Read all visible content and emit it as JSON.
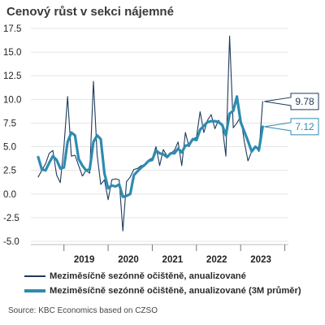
{
  "title": "Cenový růst v sekci nájemné",
  "source": "Source: KBC Economics based on CZSO",
  "colors": {
    "monthly": "#1f3a5c",
    "avg3m": "#2e8bb0",
    "grid": "#e6e6e6",
    "axis": "#444444"
  },
  "chart_data": {
    "type": "line",
    "title": "Cenový růst v sekci nájemné",
    "xlabel": "",
    "ylabel": "",
    "ylim": [
      -5.0,
      17.5
    ],
    "y_ticks": [
      "17.5",
      "15.0",
      "12.5",
      "10.0",
      "7.5",
      "5.0",
      "2.5",
      "0.0",
      "-2.5",
      "-5.0"
    ],
    "x_tick_labels": [
      "2019",
      "2020",
      "2021",
      "2022",
      "2023"
    ],
    "x_start": "2018-06",
    "x_end": "2023-12",
    "legend_position": "bottom",
    "series": [
      {
        "name": "Meziměsíčně sezónně očištěně, anualizované",
        "values": [
          1.8,
          2.5,
          3.2,
          4.3,
          4.6,
          2.0,
          1.2,
          5.0,
          10.3,
          4.0,
          4.1,
          3.0,
          1.9,
          2.5,
          2.2,
          11.9,
          4.2,
          1.0,
          1.5,
          -0.6,
          1.5,
          1.6,
          1.5,
          -3.9,
          1.3,
          1.8,
          2.6,
          2.7,
          3.0,
          3.0,
          3.6,
          3.8,
          5.0,
          3.0,
          4.7,
          4.0,
          4.3,
          4.6,
          5.5,
          3.0,
          6.5,
          5.0,
          5.8,
          6.0,
          8.7,
          6.5,
          7.8,
          8.4,
          6.9,
          7.8,
          7.2,
          4.0,
          16.7,
          7.0,
          7.5,
          8.2,
          5.5,
          3.5,
          4.5,
          5.0,
          4.5,
          9.78
        ]
      },
      {
        "name": "Meziměsíčně sezónně očištěně, anualizované (3M průměr)",
        "values": [
          3.9,
          2.6,
          2.5,
          3.3,
          4.0,
          3.6,
          2.7,
          2.8,
          5.5,
          6.5,
          6.2,
          3.7,
          3.0,
          2.5,
          2.6,
          5.5,
          6.2,
          5.8,
          2.2,
          0.6,
          0.9,
          0.8,
          1.0,
          -0.3,
          -0.2,
          0.0,
          2.0,
          2.4,
          2.8,
          3.1,
          3.5,
          3.6,
          4.6,
          4.3,
          4.2,
          3.9,
          4.3,
          4.3,
          4.8,
          4.4,
          5.1,
          5.2,
          5.8,
          5.7,
          6.8,
          7.2,
          7.6,
          7.7,
          7.7,
          7.6,
          7.3,
          6.2,
          8.5,
          8.8,
          10.3,
          7.6,
          6.6,
          5.6,
          4.5,
          5.0,
          4.7,
          7.12
        ]
      }
    ],
    "end_labels": [
      "9.78",
      "7.12"
    ]
  }
}
